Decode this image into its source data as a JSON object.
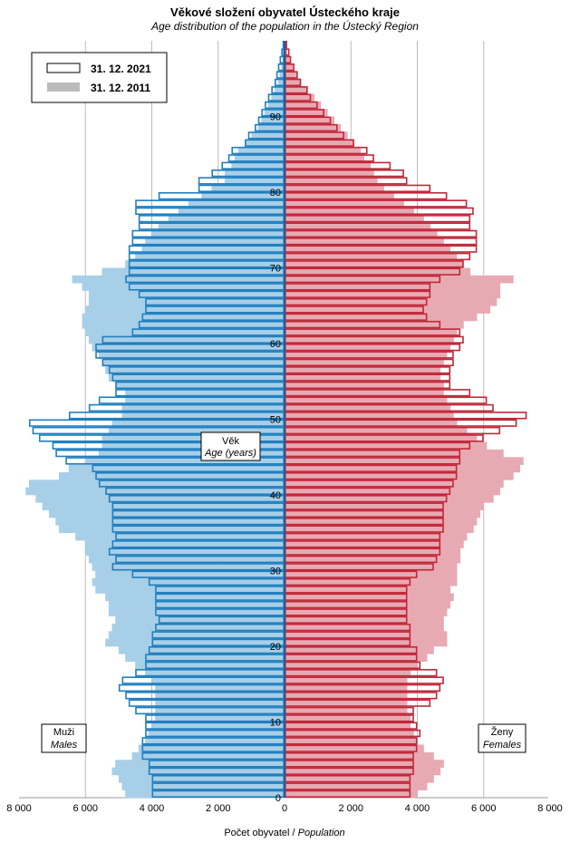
{
  "title": "Věkové složení obyvatel Ústeckého  kraje",
  "subtitle": "Age distribution of the population  in the Ústecký Region",
  "xlabel_cz": "Počet obyvatel / ",
  "xlabel_en": "Population",
  "center_label_cz": "Věk",
  "center_label_en": "Age (years)",
  "male_label_cz": "Muži",
  "male_label_en": "Males",
  "female_label_cz": "Ženy",
  "female_label_en": "Females",
  "colors": {
    "male_2021": "#1f7fbf",
    "male_2011": "#a8cfe8",
    "female_2021": "#c0283a",
    "female_2011": "#e8aab2",
    "axis": "#1f5f9f",
    "grid": "#bbbbbb"
  },
  "chart_data": {
    "type": "bar",
    "orientation": "horizontal",
    "subtype": "population-pyramid",
    "legend": {
      "placement": "top-left",
      "entries": [
        "31. 12. 2021",
        "31. 12. 2011"
      ]
    },
    "x_tick_labels": [
      "8 000",
      "6 000",
      "4 000",
      "2 000",
      "0",
      "2 000",
      "4 000",
      "6 000",
      "8 000"
    ],
    "x_range": [
      -8000,
      8000
    ],
    "age_ticks": [
      0,
      10,
      20,
      30,
      40,
      50,
      60,
      70,
      80,
      90
    ],
    "age_range": [
      0,
      100
    ],
    "series": [
      {
        "name": "31. 12. 2021",
        "sex": "male",
        "values": [
          4000,
          4000,
          4000,
          4100,
          4100,
          4300,
          4300,
          4300,
          4200,
          4200,
          4200,
          4500,
          4700,
          4800,
          5000,
          4900,
          4500,
          4200,
          4200,
          4100,
          4000,
          4000,
          3900,
          3800,
          3900,
          3900,
          3900,
          3900,
          4100,
          4600,
          5200,
          5100,
          5300,
          5200,
          5100,
          5200,
          5200,
          5200,
          5200,
          5300,
          5400,
          5600,
          5700,
          5800,
          6600,
          6900,
          7000,
          7400,
          7600,
          7700,
          6500,
          5900,
          5600,
          5100,
          5100,
          5200,
          5300,
          5500,
          5700,
          5700,
          5500,
          4600,
          4400,
          4300,
          4200,
          4200,
          4400,
          4700,
          4800,
          4700,
          4700,
          4700,
          4700,
          4600,
          4600,
          4400,
          4400,
          4500,
          4500,
          3800,
          2600,
          2600,
          2200,
          1900,
          1700,
          1600,
          1200,
          1100,
          900,
          800,
          700,
          600,
          500,
          400,
          300,
          250,
          200,
          150,
          100,
          60
        ]
      },
      {
        "name": "31. 12. 2011",
        "sex": "male",
        "values": [
          4800,
          4900,
          5000,
          5200,
          5100,
          4600,
          4400,
          4200,
          4100,
          4000,
          3900,
          3900,
          3900,
          3900,
          3900,
          4000,
          4200,
          4500,
          4800,
          5000,
          5400,
          5300,
          5200,
          5100,
          5300,
          5300,
          5400,
          5700,
          5800,
          5700,
          5800,
          5900,
          6000,
          6000,
          6300,
          6800,
          6900,
          7100,
          7300,
          7500,
          7800,
          7700,
          6800,
          6500,
          6000,
          5600,
          5500,
          5500,
          5300,
          5200,
          4900,
          4900,
          4800,
          4800,
          5100,
          5300,
          5400,
          5500,
          5600,
          5800,
          5900,
          6000,
          6100,
          6100,
          6000,
          5900,
          5900,
          6100,
          6400,
          5500,
          4800,
          4500,
          4300,
          4200,
          4000,
          3800,
          3500,
          3200,
          2900,
          2500,
          2200,
          1800,
          1800,
          1600,
          1500,
          1400,
          1200,
          1000,
          800,
          700,
          600,
          500,
          400,
          300,
          200,
          150,
          100,
          60,
          40,
          20
        ]
      },
      {
        "name": "31. 12. 2021",
        "sex": "female",
        "values": [
          3800,
          3800,
          3800,
          3900,
          3900,
          3900,
          4000,
          4000,
          4100,
          4000,
          3900,
          3900,
          4400,
          4600,
          4700,
          4800,
          4600,
          4100,
          4000,
          4000,
          3800,
          3800,
          3800,
          3700,
          3700,
          3700,
          3700,
          3700,
          3800,
          4000,
          4500,
          4600,
          4700,
          4700,
          4700,
          4800,
          4800,
          4800,
          4800,
          4900,
          5000,
          5100,
          5200,
          5200,
          5300,
          5300,
          5600,
          6000,
          6500,
          7000,
          7300,
          6300,
          6100,
          5600,
          5000,
          5000,
          5000,
          5100,
          5100,
          5300,
          5400,
          5300,
          4700,
          4300,
          4200,
          4300,
          4400,
          4400,
          4700,
          5300,
          5400,
          5600,
          5800,
          5800,
          5800,
          5600,
          5600,
          5700,
          5500,
          4900,
          4400,
          3700,
          3600,
          3200,
          2700,
          2500,
          2100,
          1800,
          1600,
          1400,
          1200,
          1000,
          800,
          700,
          500,
          400,
          300,
          200,
          150,
          80
        ]
      },
      {
        "name": "31. 12. 2011",
        "sex": "female",
        "values": [
          4000,
          4300,
          4500,
          4700,
          4800,
          4500,
          4200,
          4000,
          3900,
          3800,
          3800,
          3700,
          3700,
          3700,
          3700,
          3700,
          3800,
          4000,
          4300,
          4500,
          4900,
          4900,
          4800,
          4800,
          4900,
          5000,
          5100,
          5000,
          5200,
          5200,
          5200,
          5300,
          5300,
          5400,
          5500,
          5700,
          5800,
          5900,
          6000,
          6300,
          6500,
          6600,
          6900,
          7100,
          7200,
          6600,
          6100,
          5800,
          5500,
          5200,
          5100,
          5000,
          4900,
          4800,
          4800,
          4700,
          4700,
          4800,
          4900,
          5000,
          5100,
          5200,
          5400,
          5800,
          6200,
          6400,
          6500,
          6500,
          6900,
          5600,
          5400,
          5200,
          5000,
          4800,
          4600,
          4400,
          4200,
          3900,
          3600,
          3300,
          3000,
          2800,
          2700,
          2600,
          2400,
          2300,
          2100,
          1900,
          1700,
          1500,
          1300,
          1100,
          900,
          700,
          500,
          350,
          250,
          150,
          80,
          40
        ]
      }
    ]
  }
}
